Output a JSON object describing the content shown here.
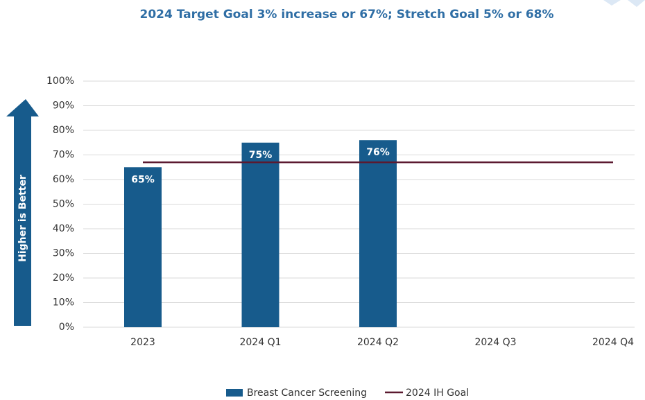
{
  "chart_data": {
    "type": "bar",
    "title": "2024 Target Goal 3% increase or 67%; Stretch Goal 5% or 68%",
    "annotation": "Higher is Better",
    "categories": [
      "2023",
      "2024 Q1",
      "2024 Q2",
      "2024 Q3",
      "2024 Q4"
    ],
    "series": [
      {
        "name": "Breast Cancer Screening",
        "type": "bar",
        "color": "#175b8c",
        "values": [
          65,
          75,
          76,
          null,
          null
        ],
        "value_labels": [
          "65%",
          "75%",
          "76%",
          null,
          null
        ]
      },
      {
        "name": "2024 IH Goal",
        "type": "line",
        "color": "#5b1a30",
        "values": [
          67,
          67,
          67,
          67,
          67
        ]
      }
    ],
    "ylim": [
      0,
      100
    ],
    "yticks": [
      {
        "value": 0,
        "label": "0%"
      },
      {
        "value": 10,
        "label": "10%"
      },
      {
        "value": 20,
        "label": "20%"
      },
      {
        "value": 30,
        "label": "30%"
      },
      {
        "value": 40,
        "label": "40%"
      },
      {
        "value": 50,
        "label": "50%"
      },
      {
        "value": 60,
        "label": "60%"
      },
      {
        "value": 70,
        "label": "70%"
      },
      {
        "value": 80,
        "label": "80%"
      },
      {
        "value": 90,
        "label": "90%"
      },
      {
        "value": 100,
        "label": "100%"
      }
    ],
    "grid": true
  }
}
